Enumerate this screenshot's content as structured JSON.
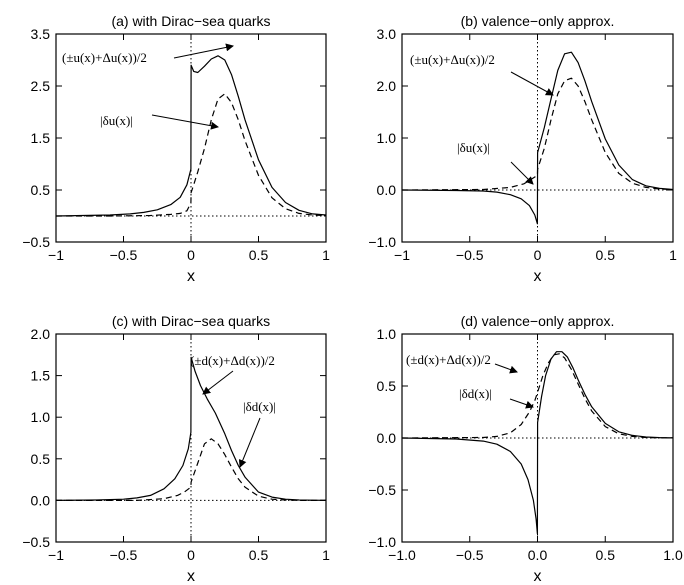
{
  "chart_data": [
    {
      "type": "line",
      "title": "(a) with Dirac−sea quarks",
      "xlabel": "x",
      "ylabel": "",
      "xlim": [
        -1,
        1
      ],
      "ylim": [
        -0.5,
        3.5
      ],
      "xticks": [
        -1,
        -0.5,
        0,
        0.5,
        1
      ],
      "xtick_labels": [
        "−1",
        "−0.5",
        "0",
        "0.5",
        "1"
      ],
      "yticks": [
        -0.5,
        0.5,
        1.5,
        2.5,
        3.5
      ],
      "ytick_labels": [
        "−0.5",
        "0.5",
        "1.5",
        "2.5",
        "3.5"
      ],
      "series": [
        {
          "style": "solid",
          "x": [
            -1,
            -0.8,
            -0.6,
            -0.45,
            -0.35,
            -0.25,
            -0.15,
            -0.08,
            -0.03,
            -0.001,
            0.001,
            0.02,
            0.05,
            0.1,
            0.15,
            0.2,
            0.25,
            0.3,
            0.35,
            0.4,
            0.5,
            0.6,
            0.7,
            0.8,
            0.9,
            1.0
          ],
          "y": [
            0.0,
            0.01,
            0.02,
            0.04,
            0.07,
            0.12,
            0.22,
            0.36,
            0.6,
            0.9,
            2.9,
            2.78,
            2.76,
            2.88,
            3.02,
            3.08,
            3.0,
            2.72,
            2.3,
            1.85,
            1.08,
            0.55,
            0.26,
            0.11,
            0.04,
            0.02
          ]
        },
        {
          "style": "dashed",
          "x": [
            -1,
            -0.6,
            -0.3,
            -0.15,
            -0.08,
            -0.03,
            -0.001,
            0.001,
            0.02,
            0.05,
            0.1,
            0.15,
            0.2,
            0.25,
            0.3,
            0.35,
            0.4,
            0.5,
            0.6,
            0.7,
            0.8,
            0.9,
            1.0
          ],
          "y": [
            0.0,
            0.0,
            0.01,
            0.03,
            0.05,
            0.1,
            0.25,
            0.45,
            0.6,
            0.85,
            1.3,
            1.85,
            2.25,
            2.35,
            2.18,
            1.85,
            1.45,
            0.78,
            0.35,
            0.14,
            0.05,
            0.02,
            0.01
          ]
        }
      ],
      "annotations": [
        {
          "text": "(±u(x)+Δu(x))/2",
          "font": "serif"
        },
        {
          "text": "|δu(x)|",
          "font": "serif"
        }
      ]
    },
    {
      "type": "line",
      "title": "(b) valence−only approx.",
      "xlabel": "x",
      "ylabel": "",
      "xlim": [
        -1,
        1
      ],
      "ylim": [
        -1.0,
        3.0
      ],
      "xticks": [
        -1,
        -0.5,
        0,
        0.5,
        1
      ],
      "xtick_labels": [
        "−1",
        "−0.5",
        "0",
        "0.5",
        "1"
      ],
      "yticks": [
        -1.0,
        0.0,
        1.0,
        2.0,
        3.0
      ],
      "ytick_labels": [
        "−1.0",
        "0.0",
        "1.0",
        "2.0",
        "3.0"
      ],
      "series": [
        {
          "style": "solid",
          "x": [
            -1,
            -0.6,
            -0.4,
            -0.3,
            -0.2,
            -0.12,
            -0.06,
            -0.02,
            -0.001,
            0.001,
            0.05,
            0.1,
            0.15,
            0.2,
            0.25,
            0.3,
            0.35,
            0.4,
            0.5,
            0.6,
            0.7,
            0.8,
            0.9,
            1.0
          ],
          "y": [
            0.0,
            -0.01,
            -0.02,
            -0.04,
            -0.09,
            -0.17,
            -0.3,
            -0.48,
            -0.65,
            0.72,
            1.2,
            1.75,
            2.3,
            2.62,
            2.65,
            2.45,
            2.1,
            1.7,
            0.98,
            0.48,
            0.2,
            0.08,
            0.03,
            0.01
          ]
        },
        {
          "style": "dashed",
          "x": [
            -1,
            -0.4,
            -0.2,
            -0.1,
            -0.05,
            -0.001,
            0.001,
            0.05,
            0.1,
            0.15,
            0.2,
            0.25,
            0.3,
            0.35,
            0.4,
            0.5,
            0.6,
            0.7,
            0.8,
            0.9,
            1.0
          ],
          "y": [
            0.0,
            0.01,
            0.05,
            0.12,
            0.2,
            0.28,
            0.4,
            0.8,
            1.35,
            1.85,
            2.1,
            2.15,
            2.0,
            1.7,
            1.35,
            0.72,
            0.32,
            0.13,
            0.05,
            0.02,
            0.01
          ]
        }
      ],
      "annotations": [
        {
          "text": "(±u(x)+Δu(x))/2",
          "font": "serif"
        },
        {
          "text": "|δu(x)|",
          "font": "serif"
        }
      ]
    },
    {
      "type": "line",
      "title": "(c) with Dirac−sea quarks",
      "xlabel": "x",
      "ylabel": "",
      "xlim": [
        -1,
        1
      ],
      "ylim": [
        -0.5,
        2.0
      ],
      "xticks": [
        -1,
        -0.5,
        0,
        0.5,
        1
      ],
      "xtick_labels": [
        "−1",
        "−0.5",
        "0",
        "0.5",
        "1"
      ],
      "yticks": [
        -0.5,
        0.0,
        0.5,
        1.0,
        1.5,
        2.0
      ],
      "ytick_labels": [
        "−0.5",
        "0.0",
        "0.5",
        "1.0",
        "1.5",
        "2.0"
      ],
      "series": [
        {
          "style": "solid",
          "x": [
            -1,
            -0.7,
            -0.5,
            -0.4,
            -0.3,
            -0.2,
            -0.12,
            -0.06,
            -0.02,
            -0.001,
            0.001,
            0.03,
            0.07,
            0.12,
            0.18,
            0.25,
            0.3,
            0.35,
            0.4,
            0.5,
            0.6,
            0.7,
            0.8,
            0.9,
            1.0
          ],
          "y": [
            0.0,
            0.005,
            0.015,
            0.03,
            0.06,
            0.14,
            0.26,
            0.42,
            0.62,
            0.82,
            1.72,
            1.55,
            1.38,
            1.22,
            1.05,
            0.8,
            0.6,
            0.42,
            0.28,
            0.1,
            0.04,
            0.015,
            0.005,
            0.002,
            0.0
          ]
        },
        {
          "style": "dashed",
          "x": [
            -1,
            -0.4,
            -0.2,
            -0.1,
            -0.05,
            -0.001,
            0.001,
            0.05,
            0.1,
            0.15,
            0.2,
            0.25,
            0.3,
            0.35,
            0.4,
            0.5,
            0.6,
            0.7,
            0.8,
            1.0
          ],
          "y": [
            0.0,
            0.0,
            0.02,
            0.06,
            0.1,
            0.16,
            0.22,
            0.45,
            0.68,
            0.74,
            0.68,
            0.55,
            0.4,
            0.26,
            0.16,
            0.05,
            0.015,
            0.005,
            0.0,
            0.0
          ]
        }
      ],
      "annotations": [
        {
          "text": "(±d(x)+Δd(x))/2",
          "font": "serif"
        },
        {
          "text": "|δd(x)|",
          "font": "serif"
        }
      ]
    },
    {
      "type": "line",
      "title": "(d) valence−only approx.",
      "xlabel": "x",
      "ylabel": "",
      "xlim": [
        -1,
        1
      ],
      "ylim": [
        -1.0,
        1.0
      ],
      "xticks": [
        -1,
        -0.5,
        0,
        0.5,
        1
      ],
      "xtick_labels": [
        "−1.0",
        "−0.5",
        "0.0",
        "0.5",
        "1.0"
      ],
      "yticks": [
        -1.0,
        -0.5,
        0.0,
        0.5,
        1.0
      ],
      "ytick_labels": [
        "−1.0",
        "−0.5",
        "0.0",
        "0.5",
        "1.0"
      ],
      "series": [
        {
          "style": "solid",
          "x": [
            -1,
            -0.6,
            -0.4,
            -0.3,
            -0.2,
            -0.12,
            -0.07,
            -0.03,
            -0.01,
            -0.001,
            0.001,
            0.03,
            0.06,
            0.1,
            0.14,
            0.18,
            0.22,
            0.26,
            0.3,
            0.35,
            0.4,
            0.5,
            0.6,
            0.7,
            0.8,
            0.9,
            1.0
          ],
          "y": [
            0.0,
            -0.01,
            -0.03,
            -0.06,
            -0.13,
            -0.25,
            -0.4,
            -0.6,
            -0.78,
            -0.92,
            0.15,
            0.4,
            0.6,
            0.76,
            0.83,
            0.83,
            0.78,
            0.68,
            0.56,
            0.42,
            0.3,
            0.14,
            0.06,
            0.025,
            0.01,
            0.004,
            0.002
          ]
        },
        {
          "style": "dashed",
          "x": [
            -1,
            -0.4,
            -0.3,
            -0.2,
            -0.12,
            -0.06,
            -0.02,
            0.001,
            0.04,
            0.08,
            0.12,
            0.16,
            0.2,
            0.25,
            0.3,
            0.35,
            0.4,
            0.5,
            0.6,
            0.7,
            0.8,
            0.9,
            1.0
          ],
          "y": [
            0.0,
            0.005,
            0.015,
            0.05,
            0.13,
            0.25,
            0.36,
            0.44,
            0.6,
            0.72,
            0.8,
            0.81,
            0.77,
            0.66,
            0.52,
            0.38,
            0.26,
            0.11,
            0.04,
            0.015,
            0.005,
            0.002,
            0.001
          ]
        }
      ],
      "annotations": [
        {
          "text": "(±d(x)+Δd(x))/2",
          "font": "serif"
        },
        {
          "text": "|δd(x)|",
          "font": "serif"
        }
      ]
    }
  ]
}
